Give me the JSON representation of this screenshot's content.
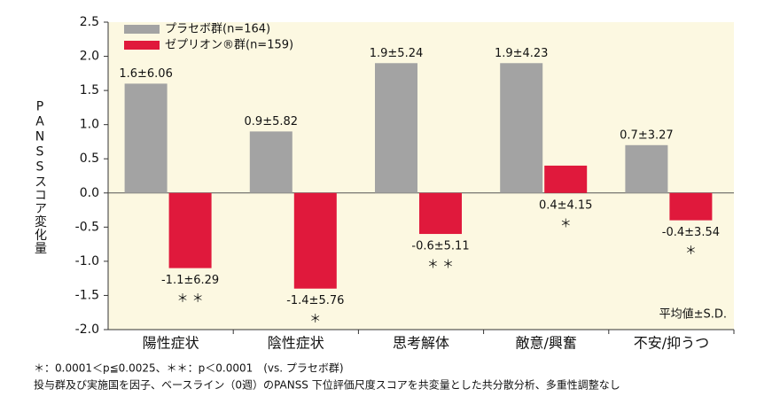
{
  "chart_data": {
    "type": "bar",
    "y_label": "PANSSスコア変化量",
    "note": "平均値±S.D.",
    "footnotes": [
      "＊：0.0001＜p≦0.0025、＊＊：p＜0.0001　(vs. プラセボ群)",
      "投与群及び実施国を因子、ベースライン（0週）のPANSS 下位評価尺度スコアを共変量とした共分散分析、多重性調整なし"
    ],
    "categories": [
      "陽性症状",
      "陰性症状",
      "思考解体",
      "敵意/興奮",
      "不安/抑うつ"
    ],
    "series": [
      {
        "name": "プラセボ群(n=164)",
        "color": "#a3a3a3",
        "values": [
          1.6,
          0.9,
          1.9,
          1.9,
          0.7
        ],
        "value_labels": [
          "1.6±6.06",
          "0.9±5.82",
          "1.9±5.24",
          "1.9±4.23",
          "0.7±3.27"
        ]
      },
      {
        "name": "ゼプリオン®群(n=159)",
        "color": "#e0193c",
        "values": [
          -1.1,
          -1.4,
          -0.6,
          0.4,
          -0.4
        ],
        "value_labels": [
          "-1.1±6.29",
          "-1.4±5.76",
          "-0.6±5.11",
          "0.4±4.15",
          "-0.4±3.54"
        ],
        "significance": [
          "＊ ＊",
          "＊",
          "＊ ＊",
          "＊",
          "＊"
        ]
      }
    ],
    "ylim": [
      -2.0,
      2.5
    ],
    "yticks": [
      2.5,
      {
        "value": 2,
        "label": "2.0"
      },
      1.5,
      {
        "value": 1,
        "label": "1.0"
      },
      0.5,
      {
        "value": 0,
        "label": "0.0"
      },
      -0.5,
      {
        "value": -1,
        "label": "-1.0"
      },
      -1.5,
      {
        "value": -2,
        "label": "-2.0"
      }
    ],
    "background": "#fcf8e1"
  }
}
